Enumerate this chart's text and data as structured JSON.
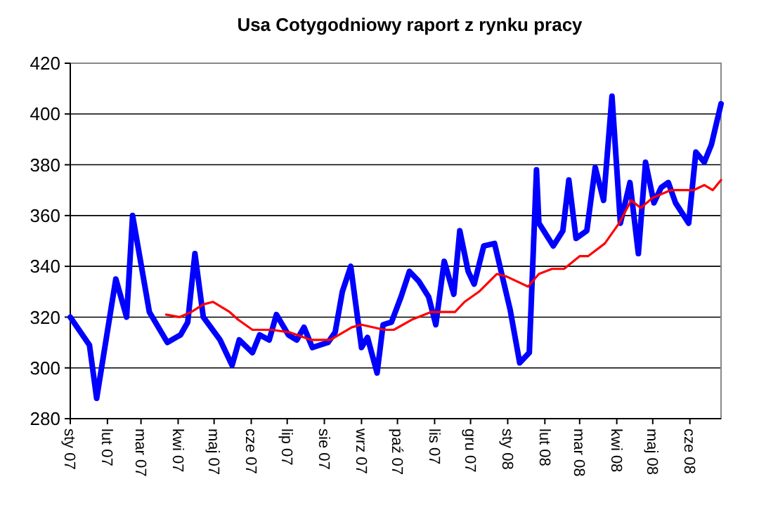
{
  "chart_data": {
    "type": "line",
    "title": "Usa Cotygodniowy raport z rynku pracy",
    "xlim": [
      "2007-01-01",
      "2008-06-27"
    ],
    "xticks": [
      {
        "value": "2007-01-01",
        "label": "sty 07"
      },
      {
        "value": "2007-02-01",
        "label": "lut 07"
      },
      {
        "value": "2007-03-01",
        "label": "mar 07"
      },
      {
        "value": "2007-04-01",
        "label": "kwi 07"
      },
      {
        "value": "2007-05-01",
        "label": "maj 07"
      },
      {
        "value": "2007-06-01",
        "label": "cze 07"
      },
      {
        "value": "2007-07-01",
        "label": "lip 07"
      },
      {
        "value": "2007-08-01",
        "label": "sie 07"
      },
      {
        "value": "2007-09-01",
        "label": "wrz 07"
      },
      {
        "value": "2007-10-01",
        "label": "paź 07"
      },
      {
        "value": "2007-11-01",
        "label": "lis 07"
      },
      {
        "value": "2007-12-01",
        "label": "gru 07"
      },
      {
        "value": "2008-01-01",
        "label": "sty 08"
      },
      {
        "value": "2008-02-01",
        "label": "lut 08"
      },
      {
        "value": "2008-03-01",
        "label": "mar 08"
      },
      {
        "value": "2008-04-01",
        "label": "kwi 08"
      },
      {
        "value": "2008-05-01",
        "label": "maj 08"
      },
      {
        "value": "2008-06-01",
        "label": "cze 08"
      }
    ],
    "ylim": [
      280,
      420
    ],
    "yticks": [
      280,
      300,
      320,
      340,
      360,
      380,
      400,
      420
    ],
    "grid": "y",
    "marker": "none",
    "line_style": "solid",
    "series": [
      {
        "color": "#0000ff",
        "x": [
          "2007-01-01",
          "2007-01-17",
          "2007-01-23",
          "2007-02-08",
          "2007-02-17",
          "2007-02-22",
          "2007-03-08",
          "2007-03-23",
          "2007-04-03",
          "2007-04-09",
          "2007-04-15",
          "2007-04-22",
          "2007-05-06",
          "2007-05-16",
          "2007-05-22",
          "2007-06-02",
          "2007-06-08",
          "2007-06-16",
          "2007-06-22",
          "2007-07-02",
          "2007-07-09",
          "2007-07-15",
          "2007-07-22",
          "2007-08-04",
          "2007-08-10",
          "2007-08-16",
          "2007-08-23",
          "2007-09-01",
          "2007-09-06",
          "2007-09-14",
          "2007-09-19",
          "2007-09-26",
          "2007-10-04",
          "2007-10-11",
          "2007-10-19",
          "2007-10-27",
          "2007-11-02",
          "2007-11-09",
          "2007-11-17",
          "2007-11-22",
          "2007-11-29",
          "2007-12-04",
          "2007-12-12",
          "2007-12-21",
          "2008-01-03",
          "2008-01-11",
          "2008-01-19",
          "2008-01-25",
          "2008-01-27",
          "2008-02-08",
          "2008-02-16",
          "2008-02-21",
          "2008-02-27",
          "2008-03-07",
          "2008-03-14",
          "2008-03-21",
          "2008-03-28",
          "2008-04-04",
          "2008-04-12",
          "2008-04-19",
          "2008-04-25",
          "2008-05-02",
          "2008-05-08",
          "2008-05-14",
          "2008-05-20",
          "2008-05-31",
          "2008-06-06",
          "2008-06-13",
          "2008-06-19",
          "2008-06-27"
        ],
        "values": [
          320,
          309,
          288,
          335,
          320,
          360,
          322,
          310,
          313,
          318,
          345,
          320,
          311,
          301,
          311,
          306,
          313,
          311,
          321,
          313,
          311,
          316,
          308,
          310,
          314,
          330,
          340,
          308,
          312,
          298,
          317,
          318,
          328,
          338,
          334,
          328,
          317,
          342,
          329,
          354,
          338,
          333,
          348,
          349,
          323,
          302,
          306,
          378,
          357,
          348,
          354,
          374,
          351,
          354,
          379,
          366,
          407,
          357,
          373,
          345,
          381,
          365,
          371,
          373,
          365,
          357,
          385,
          381,
          388,
          404
        ]
      },
      {
        "color": "#ff0000",
        "x": [
          "2007-03-22",
          "2007-04-02",
          "2007-04-12",
          "2007-04-22",
          "2007-04-30",
          "2007-05-14",
          "2007-05-21",
          "2007-06-02",
          "2007-06-18",
          "2007-07-03",
          "2007-07-21",
          "2007-08-06",
          "2007-08-24",
          "2007-09-01",
          "2007-09-20",
          "2007-09-28",
          "2007-10-13",
          "2007-10-29",
          "2007-11-10",
          "2007-11-18",
          "2007-11-26",
          "2007-12-08",
          "2007-12-23",
          "2007-12-31",
          "2008-01-18",
          "2008-01-27",
          "2008-02-07",
          "2008-02-17",
          "2008-03-01",
          "2008-03-08",
          "2008-03-22",
          "2008-04-03",
          "2008-04-13",
          "2008-04-21",
          "2008-05-01",
          "2008-05-16",
          "2008-05-28",
          "2008-06-04",
          "2008-06-13",
          "2008-06-20",
          "2008-06-27"
        ],
        "values": [
          321,
          320,
          322,
          325,
          326,
          322,
          319,
          315,
          315,
          314,
          311,
          311,
          316,
          317,
          315,
          315,
          319,
          322,
          322,
          322,
          326,
          330,
          337,
          336,
          332,
          337,
          339,
          339,
          344,
          344,
          349,
          357,
          366,
          363,
          367,
          370,
          370,
          370,
          372,
          370,
          374
        ]
      }
    ]
  }
}
